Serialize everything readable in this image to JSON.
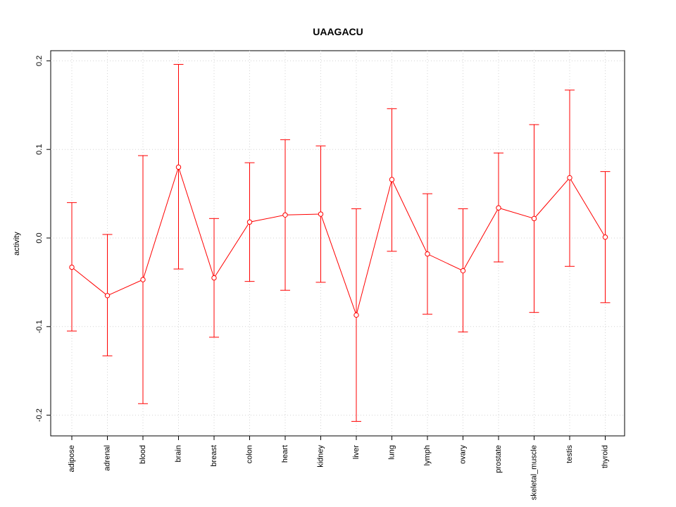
{
  "chart_data": {
    "type": "line",
    "title": "UAAGACU",
    "xlabel": "",
    "ylabel": "activity",
    "categories": [
      "adipose",
      "adrenal",
      "blood",
      "brain",
      "breast",
      "colon",
      "heart",
      "kidney",
      "liver",
      "lung",
      "lymph",
      "ovary",
      "prostate",
      "skeletal_muscle",
      "testis",
      "thyroid"
    ],
    "series": [
      {
        "values": [
          -0.033,
          -0.065,
          -0.047,
          0.08,
          -0.045,
          0.018,
          0.026,
          0.027,
          -0.087,
          0.066,
          -0.018,
          -0.037,
          0.034,
          0.022,
          0.068,
          0.001
        ],
        "error_low": [
          -0.105,
          -0.133,
          -0.187,
          -0.035,
          -0.112,
          -0.049,
          -0.059,
          -0.05,
          -0.207,
          -0.015,
          -0.086,
          -0.106,
          -0.027,
          -0.084,
          -0.032,
          -0.073
        ],
        "error_high": [
          0.04,
          0.004,
          0.093,
          0.196,
          0.022,
          0.085,
          0.111,
          0.104,
          0.033,
          0.146,
          0.05,
          0.033,
          0.096,
          0.128,
          0.167,
          0.075
        ]
      }
    ],
    "ylim": [
      -0.225,
      0.21
    ],
    "yticks": [
      -0.2,
      -0.1,
      0.0,
      0.1,
      0.2
    ],
    "ytick_labels": [
      "-0.2",
      "-0.1",
      "0.0",
      "0.1",
      "0.2"
    ],
    "grid": true,
    "colors": {
      "series": "#ff0000",
      "grid": "#d3d3d3",
      "axis": "#000000"
    }
  }
}
